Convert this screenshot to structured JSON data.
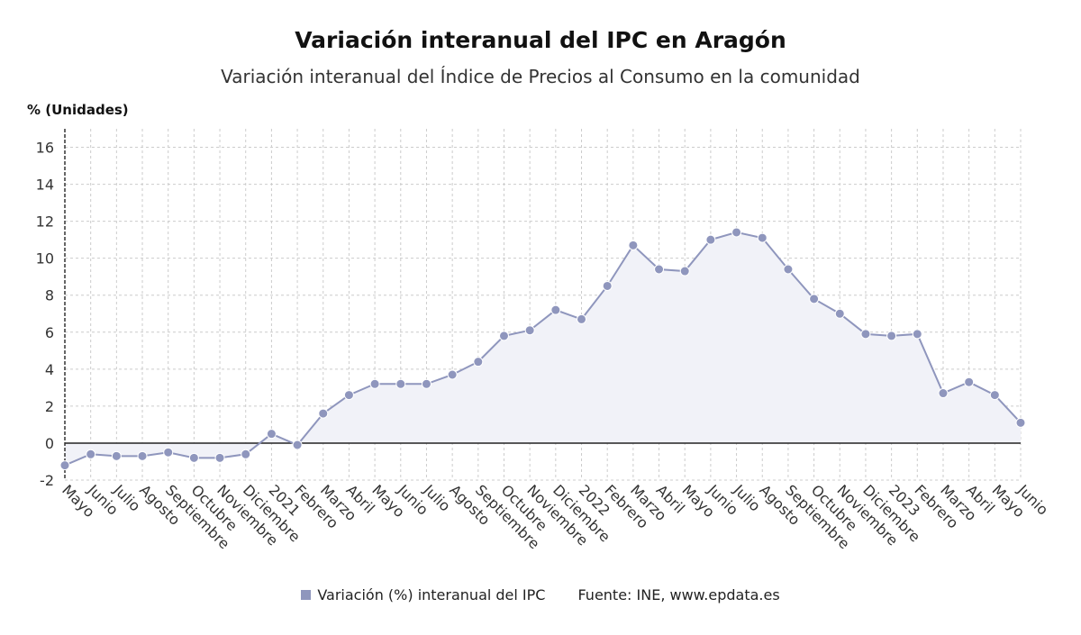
{
  "title": "Variación interanual del IPC en Aragón",
  "subtitle": "Variación interanual del Índice de Precios al Consumo en la comunidad",
  "legend": {
    "series_label": "Variación (%) interanual del IPC",
    "source": "Fuente: INE, www.epdata.es"
  },
  "colors": {
    "series": "#8f96bd",
    "fill": "#f1f2f8",
    "zero_line": "#222222",
    "grid": "#cccccc"
  },
  "chart_data": {
    "type": "line",
    "ylabel": "% (Unidades)",
    "ylim": [
      -2,
      17
    ],
    "yticks": [
      -2,
      0,
      2,
      4,
      6,
      8,
      10,
      12,
      14,
      16
    ],
    "grid": true,
    "categories": [
      "Mayo",
      "Junio",
      "Julio",
      "Agosto",
      "Septiembre",
      "Octubre",
      "Noviembre",
      "Diciembre",
      "2021",
      "Febrero",
      "Marzo",
      "Abril",
      "Mayo",
      "Junio",
      "Julio",
      "Agosto",
      "Septiembre",
      "Octubre",
      "Noviembre",
      "Diciembre",
      "2022",
      "Febrero",
      "Marzo",
      "Abril",
      "Mayo",
      "Junio",
      "Julio",
      "Agosto",
      "Septiembre",
      "Octubre",
      "Noviembre",
      "Diciembre",
      "2023",
      "Febrero",
      "Marzo",
      "Abril",
      "Mayo",
      "Junio"
    ],
    "series": [
      {
        "name": "Variación (%) interanual del IPC",
        "values": [
          -1.2,
          -0.6,
          -0.7,
          -0.7,
          -0.5,
          -0.8,
          -0.8,
          -0.6,
          0.5,
          -0.1,
          1.6,
          2.6,
          3.2,
          3.2,
          3.2,
          3.7,
          4.4,
          5.8,
          6.1,
          7.2,
          6.7,
          8.5,
          10.7,
          9.4,
          9.3,
          11.0,
          11.4,
          11.1,
          9.4,
          7.8,
          7.0,
          5.9,
          5.8,
          5.9,
          2.7,
          3.3,
          2.6,
          1.1
        ]
      }
    ]
  }
}
